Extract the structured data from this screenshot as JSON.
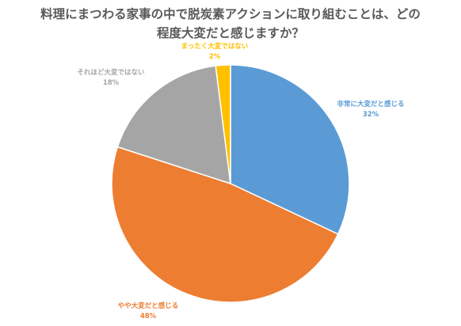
{
  "chart_data": {
    "type": "pie",
    "title_lines": [
      "料理にまつわる家事の中で脱炭素アクションに取り組むことは、どの",
      "程度大変だと感じますか？"
    ],
    "slices": [
      {
        "label": "非常に大変だと感じる",
        "value": 32,
        "value_label": "32%",
        "color": "#5B9BD5"
      },
      {
        "label": "やや大変だと感じる",
        "value": 48,
        "value_label": "48%",
        "color": "#ED7D31"
      },
      {
        "label": "それほど大変ではない",
        "value": 18,
        "value_label": "18%",
        "color": "#A5A5A5"
      },
      {
        "label": "まったく大変ではない",
        "value": 2,
        "value_label": "2%",
        "color": "#FFC000"
      }
    ],
    "start_angle_deg": 0,
    "direction": "clockwise",
    "legend": "none",
    "data_labels": "outside"
  }
}
